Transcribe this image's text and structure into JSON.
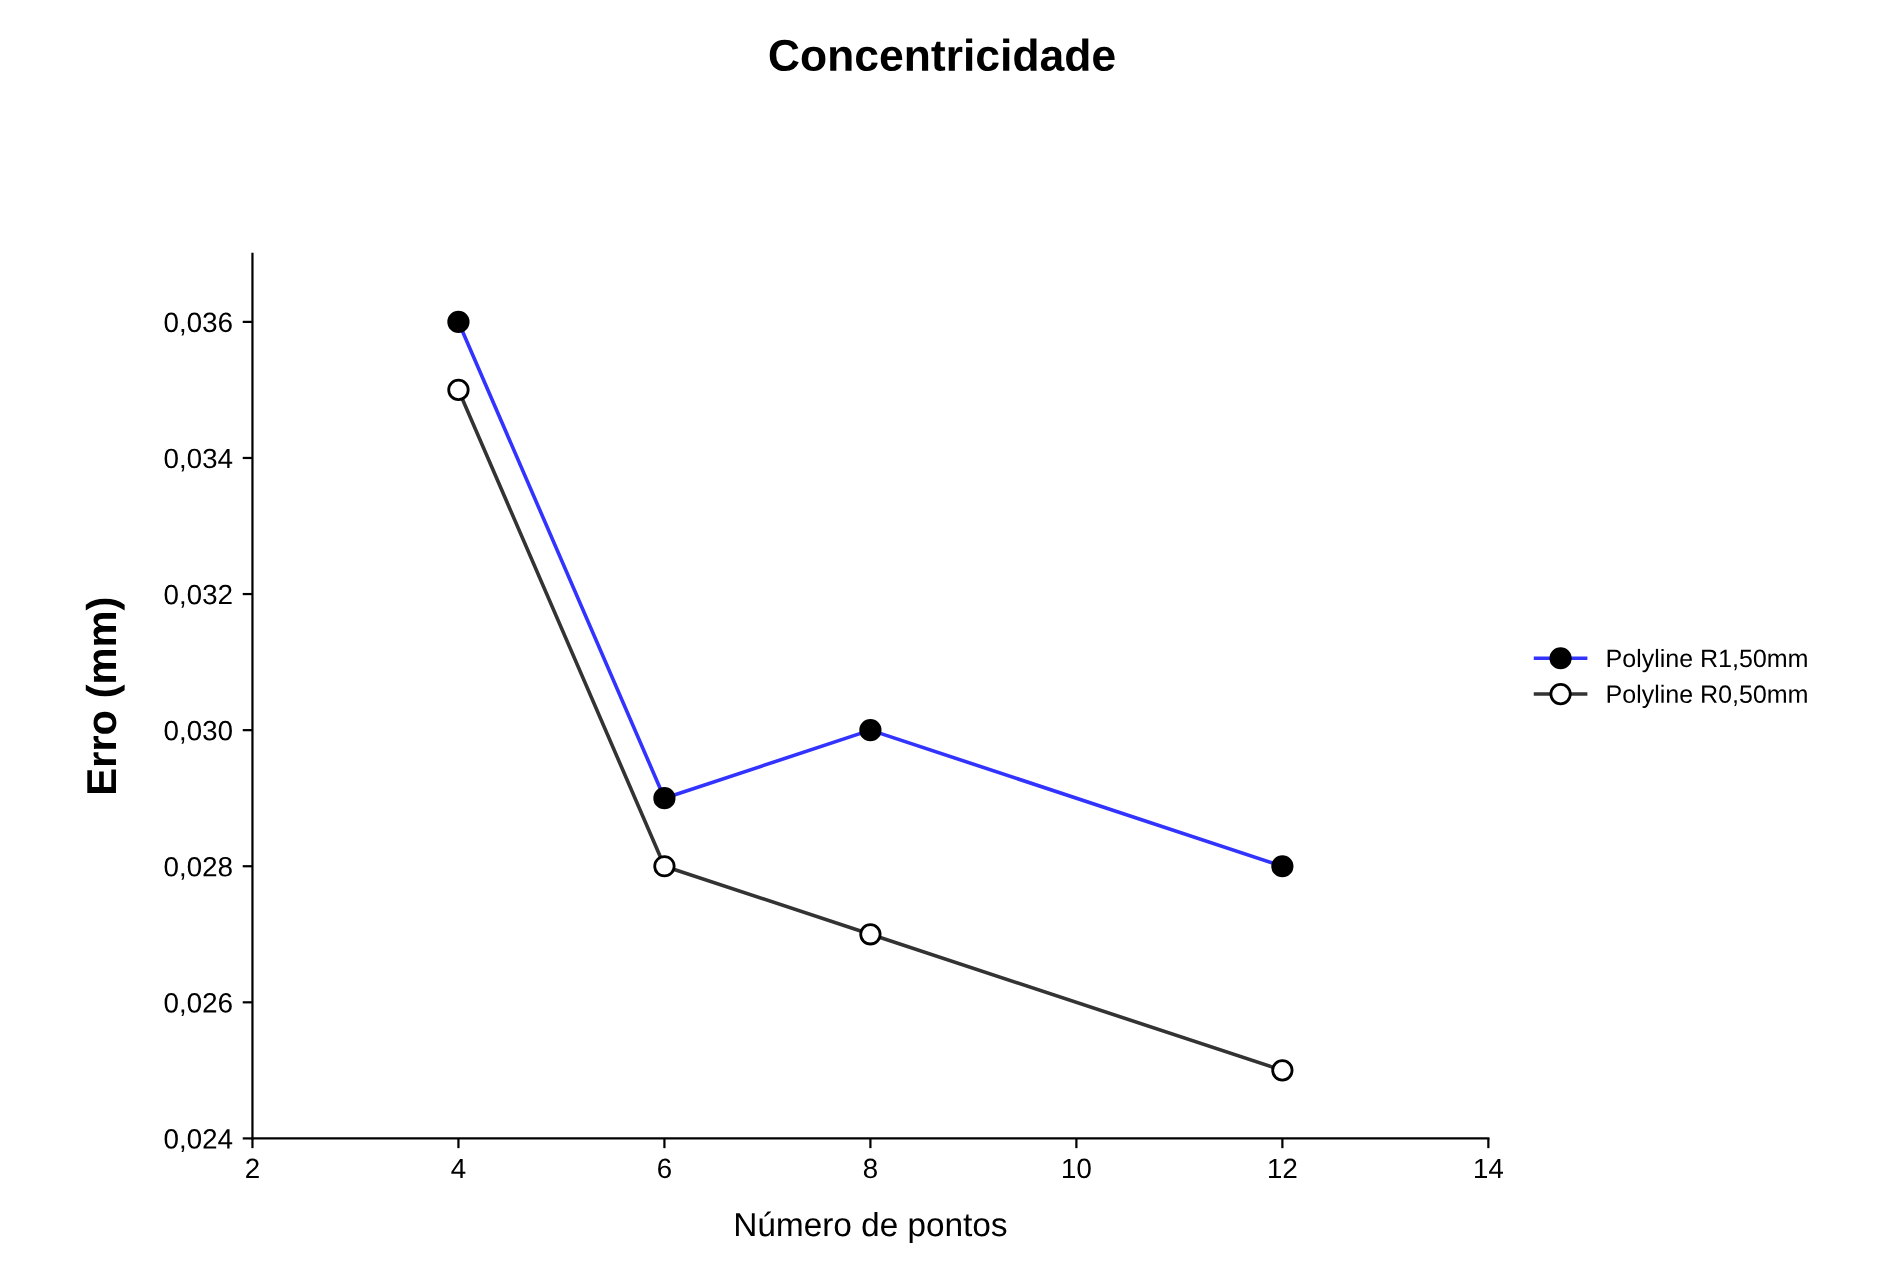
{
  "chart_data": {
    "type": "line",
    "title": "Concentricidade",
    "xlabel": "Número de pontos",
    "ylabel": "Erro (mm)",
    "x": [
      4,
      6,
      8,
      12
    ],
    "series": [
      {
        "name": "Polyline R1,50mm",
        "color": "#3333ff",
        "values": [
          0.036,
          0.029,
          0.03,
          0.028
        ],
        "marker": "circle"
      },
      {
        "name": "Polyline R0,50mm",
        "color": "#333333",
        "values": [
          0.035,
          0.028,
          0.027,
          0.025
        ],
        "marker": "circle"
      }
    ],
    "xlim": [
      2,
      14
    ],
    "xticks": [
      2,
      4,
      6,
      8,
      10,
      12,
      14
    ],
    "ylim": [
      0.024,
      0.037
    ],
    "yticks": [
      {
        "value": 0.024,
        "label": "0,024"
      },
      {
        "value": 0.026,
        "label": "0,026"
      },
      {
        "value": 0.028,
        "label": "0,028"
      },
      {
        "value": 0.03,
        "label": "0,030"
      },
      {
        "value": 0.032,
        "label": "0,032"
      },
      {
        "value": 0.034,
        "label": "0,034"
      },
      {
        "value": 0.036,
        "label": "0,036"
      }
    ],
    "grid": false,
    "legend": "right"
  }
}
